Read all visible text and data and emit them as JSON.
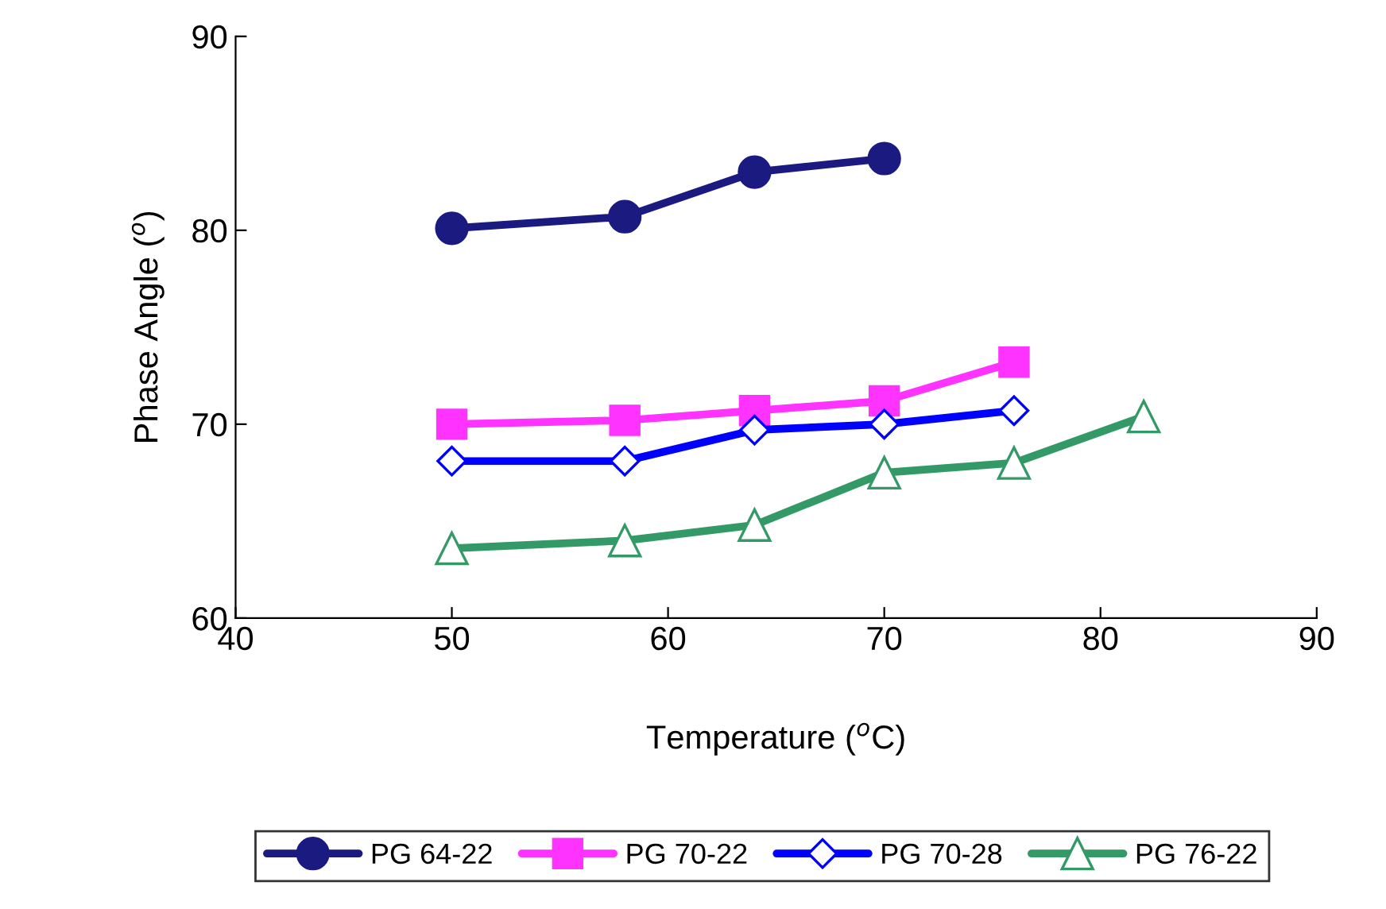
{
  "chart_data": {
    "type": "line",
    "xlabel": "Temperature ($^{o}$C)",
    "ylabel": "Phase Angle ($^{o}$)",
    "xlim": [
      40,
      90
    ],
    "xticks": [
      40,
      50,
      60,
      70,
      80,
      90
    ],
    "ylim": [
      60,
      90
    ],
    "yticks": [
      60,
      70,
      80,
      90
    ],
    "grid": false,
    "legend": "bottom",
    "series": [
      {
        "name": "PG 64-22",
        "color": "#1a1a80",
        "marker": "circle",
        "x": [
          50,
          58,
          64,
          70
        ],
        "values": [
          80.1,
          80.7,
          83.0,
          83.7
        ]
      },
      {
        "name": "PG 70-22",
        "color": "#ff33ff",
        "marker": "square",
        "x": [
          50,
          58,
          64,
          70,
          76
        ],
        "values": [
          70.0,
          70.2,
          70.7,
          71.2,
          73.2
        ]
      },
      {
        "name": "PG 70-28",
        "color": "#0000ff",
        "marker": "diamond",
        "x": [
          50,
          58,
          64,
          70,
          76
        ],
        "values": [
          68.1,
          68.1,
          69.7,
          70.0,
          70.7
        ]
      },
      {
        "name": "PG 76-22",
        "color": "#339966",
        "marker": "triangle",
        "x": [
          50,
          58,
          64,
          70,
          76,
          82
        ],
        "values": [
          63.6,
          64.0,
          64.8,
          67.5,
          68.0,
          70.4
        ]
      }
    ]
  }
}
